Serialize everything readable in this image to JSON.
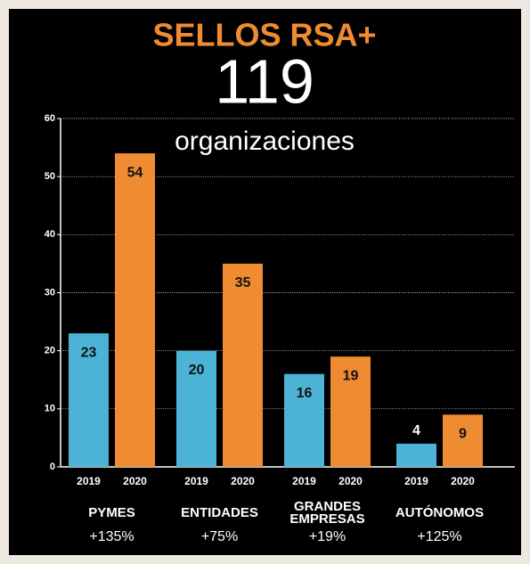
{
  "chart_data": {
    "type": "bar",
    "title": "SELLOS RSA+",
    "subtitle": "119",
    "subtitle_caption": "organizaciones",
    "categories": [
      "PYMES",
      "ENTIDADES",
      "GRANDES EMPRESAS",
      "AUTÓNOMOS"
    ],
    "growth_labels": [
      "+135%",
      "+75%",
      "+19%",
      "+125%"
    ],
    "series": [
      {
        "name": "2019",
        "color": "#4db3d6",
        "values": [
          23,
          20,
          16,
          4
        ]
      },
      {
        "name": "2020",
        "color": "#ef8c32",
        "values": [
          54,
          35,
          19,
          9
        ]
      }
    ],
    "ylim": [
      0,
      60
    ],
    "yticks": [
      0,
      10,
      20,
      30,
      40,
      50,
      60
    ],
    "grid": true
  }
}
